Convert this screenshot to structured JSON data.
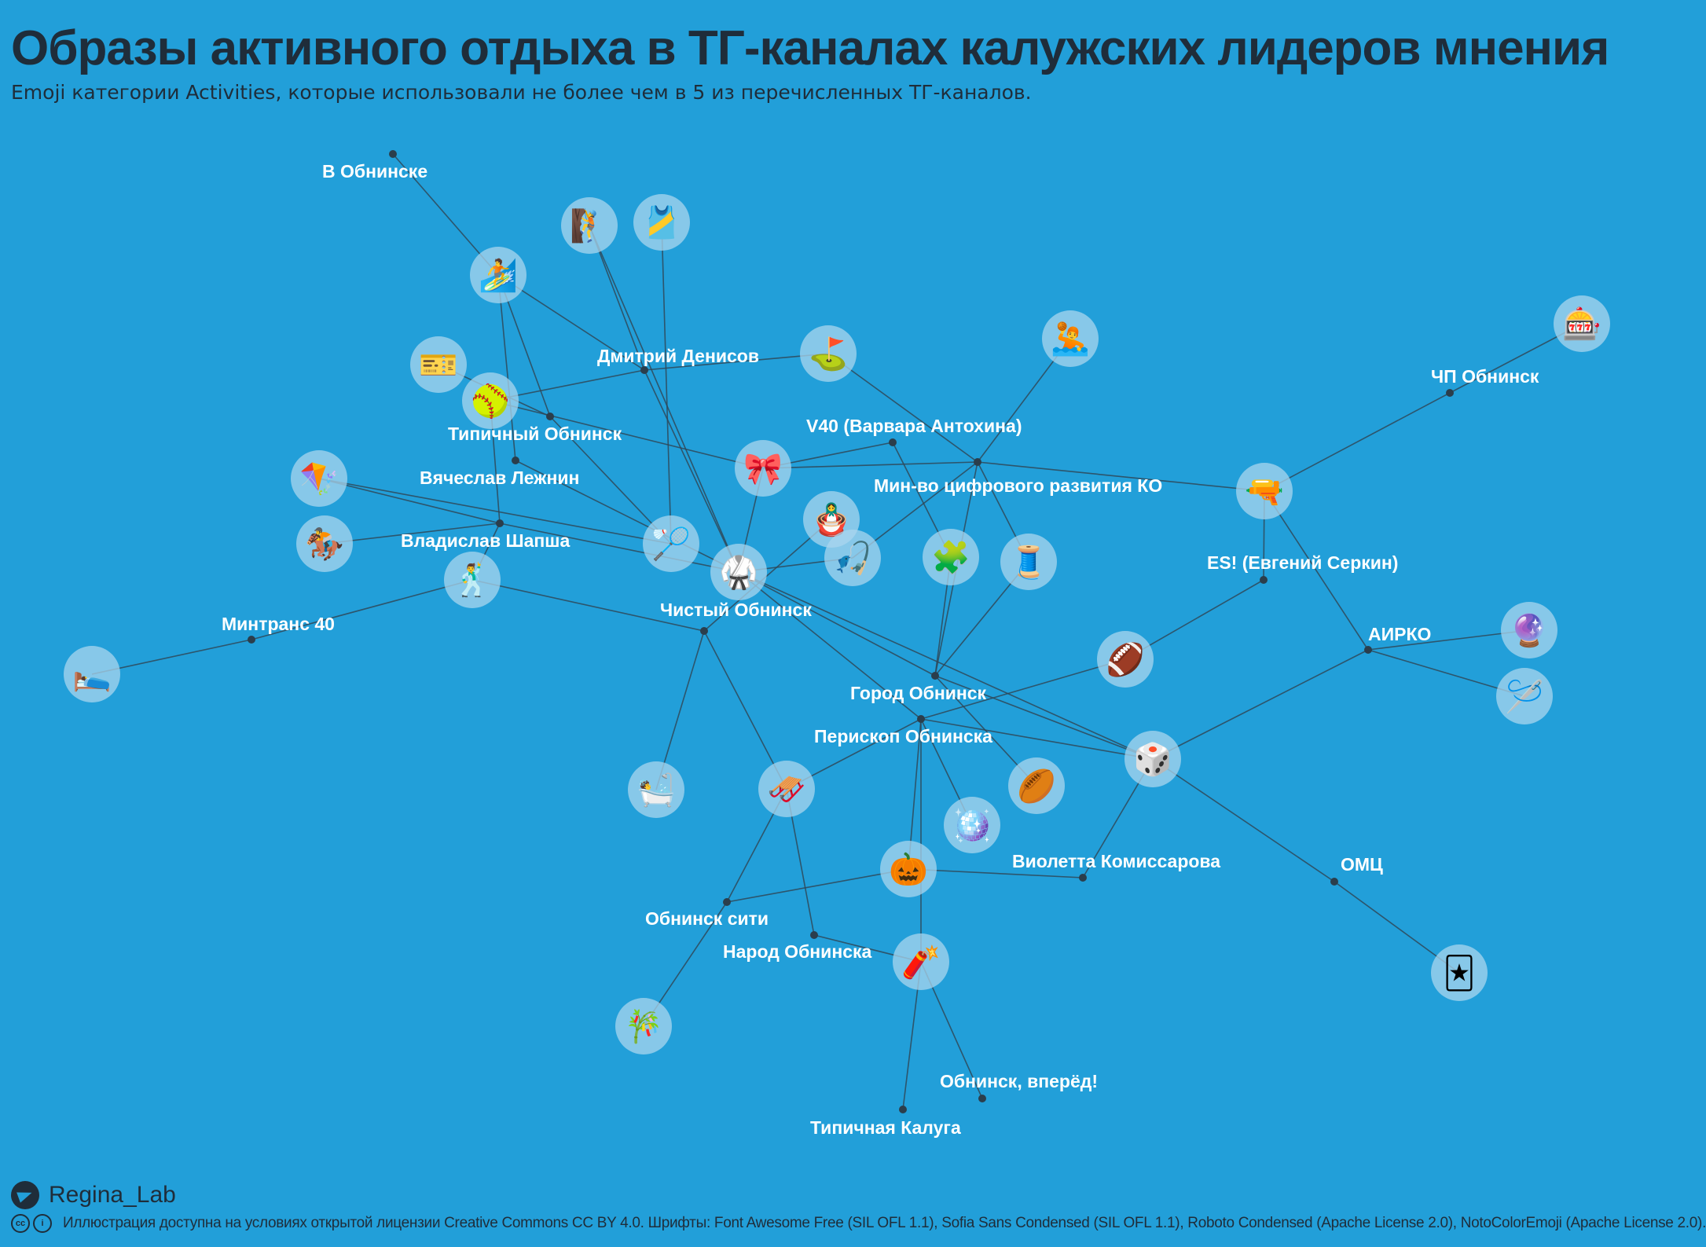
{
  "title": "Образы активного отдыха в ТГ-каналах калужских лидеров мнения",
  "subtitle": "Emoji категории Activities, которые использовали не более чем в 5 из перечисленных ТГ-каналов.",
  "brand": {
    "icon": "telegram-icon",
    "name": "Regina_Lab"
  },
  "footer": {
    "license_icons": [
      "cc-icon",
      "by-icon"
    ],
    "text": "Иллюстрация доступна на условиях открытой лицензии Creative Commons CC BY 4.0.  Шрифты: Font Awesome Free (SIL OFL 1.1), Sofia Sans Condensed (SIL OFL 1.1), Roboto Condensed (Apache License 2.0), NotoColorEmoji (Apache License 2.0)."
  },
  "colors": {
    "background": "#229fd9",
    "text": "#1f2d3a",
    "label": "#ffffff",
    "edge": "#2f4858",
    "emoji_circle": "#a9d6ee"
  },
  "channels": [
    {
      "id": "obninske",
      "label": "В Обнинске"
    },
    {
      "id": "denisov",
      "label": "Дмитрий Денисов"
    },
    {
      "id": "tipichny_obninsk",
      "label": "Типичный Обнинск"
    },
    {
      "id": "lezhnin",
      "label": "Вячеслав Лежнин"
    },
    {
      "id": "shapsha",
      "label": "Владислав Шапша"
    },
    {
      "id": "mintrans",
      "label": "Минтранс 40"
    },
    {
      "id": "v40",
      "label": "V40 (Варвара Антохина)"
    },
    {
      "id": "mincifra",
      "label": "Мин-во цифрового развития КО"
    },
    {
      "id": "chisty",
      "label": "Чистый Обнинск"
    },
    {
      "id": "gorod",
      "label": "Город Обнинск"
    },
    {
      "id": "periskop",
      "label": "Перископ Обнинска"
    },
    {
      "id": "obninsk_city",
      "label": "Обнинск сити"
    },
    {
      "id": "narod",
      "label": "Народ Обнинска"
    },
    {
      "id": "tipichnaya_kaluga",
      "label": "Типичная Калуга"
    },
    {
      "id": "vperyod",
      "label": "Обнинск, вперёд!"
    },
    {
      "id": "komissarova",
      "label": "Виолетта Комиссарова"
    },
    {
      "id": "omc",
      "label": "ОМЦ"
    },
    {
      "id": "airko",
      "label": "АИРКО"
    },
    {
      "id": "es",
      "label": "ES! (Евгений Серкин)"
    },
    {
      "id": "chp",
      "label": "ЧП Обнинск"
    }
  ],
  "emojis": [
    {
      "id": "climbing",
      "char": "🧗"
    },
    {
      "id": "tanktop",
      "char": "🎽"
    },
    {
      "id": "surfer",
      "char": "🏄"
    },
    {
      "id": "ticket",
      "char": "🎫"
    },
    {
      "id": "softball",
      "char": "🥎"
    },
    {
      "id": "golf",
      "char": "⛳"
    },
    {
      "id": "waterpolo",
      "char": "🤽"
    },
    {
      "id": "slot",
      "char": "🎰"
    },
    {
      "id": "kite",
      "char": "🪁"
    },
    {
      "id": "horse",
      "char": "🏇"
    },
    {
      "id": "ribbon",
      "char": "🎀"
    },
    {
      "id": "nesting",
      "char": "🪆"
    },
    {
      "id": "badminton",
      "char": "🏸"
    },
    {
      "id": "fishing",
      "char": "🎣"
    },
    {
      "id": "puzzle",
      "char": "🧩"
    },
    {
      "id": "thread",
      "char": "🧵"
    },
    {
      "id": "watergun",
      "char": "🔫"
    },
    {
      "id": "martial",
      "char": "🥋"
    },
    {
      "id": "dancer",
      "char": "🕺"
    },
    {
      "id": "bed",
      "char": "🛌"
    },
    {
      "id": "football",
      "char": "🏈"
    },
    {
      "id": "crystal",
      "char": "🔮"
    },
    {
      "id": "yarn",
      "char": "🪡"
    },
    {
      "id": "die",
      "char": "🎲"
    },
    {
      "id": "bath",
      "char": "🛀"
    },
    {
      "id": "sled",
      "char": "🛷"
    },
    {
      "id": "rugby",
      "char": "🏉"
    },
    {
      "id": "mirrorball",
      "char": "🪩"
    },
    {
      "id": "pumpkin",
      "char": "🎃"
    },
    {
      "id": "joker",
      "char": "🃏"
    },
    {
      "id": "firecracker",
      "char": "🧨"
    },
    {
      "id": "tanabata",
      "char": "🎋"
    }
  ],
  "edges": [
    [
      "obninske",
      "surfer"
    ],
    [
      "surfer",
      "denisov"
    ],
    [
      "surfer",
      "tipichny_obninsk"
    ],
    [
      "climbing",
      "denisov"
    ],
    [
      "climbing",
      "martial"
    ],
    [
      "tanktop",
      "badminton"
    ],
    [
      "denisov",
      "golf"
    ],
    [
      "denisov",
      "softball"
    ],
    [
      "denisov",
      "martial"
    ],
    [
      "golf",
      "mincifra"
    ],
    [
      "ticket",
      "tipichny_obninsk"
    ],
    [
      "softball",
      "ribbon"
    ],
    [
      "tipichny_obninsk",
      "badminton"
    ],
    [
      "lezhnin",
      "surfer"
    ],
    [
      "lezhnin",
      "martial"
    ],
    [
      "kite",
      "shapsha"
    ],
    [
      "kite",
      "badminton"
    ],
    [
      "horse",
      "shapsha"
    ],
    [
      "shapsha",
      "softball"
    ],
    [
      "shapsha",
      "dancer"
    ],
    [
      "shapsha",
      "martial"
    ],
    [
      "dancer",
      "mintrans"
    ],
    [
      "dancer",
      "chisty"
    ],
    [
      "mintrans",
      "bed"
    ],
    [
      "v40",
      "puzzle"
    ],
    [
      "v40",
      "ribbon"
    ],
    [
      "ribbon",
      "mincifra"
    ],
    [
      "ribbon",
      "martial"
    ],
    [
      "mincifra",
      "waterpolo"
    ],
    [
      "mincifra",
      "watergun"
    ],
    [
      "mincifra",
      "thread"
    ],
    [
      "mincifra",
      "fishing"
    ],
    [
      "mincifra",
      "gorod"
    ],
    [
      "nesting",
      "chisty"
    ],
    [
      "fishing",
      "martial"
    ],
    [
      "chisty",
      "bath"
    ],
    [
      "chisty",
      "sled"
    ],
    [
      "martial",
      "gorod"
    ],
    [
      "martial",
      "periskop"
    ],
    [
      "martial",
      "die"
    ],
    [
      "puzzle",
      "gorod"
    ],
    [
      "thread",
      "gorod"
    ],
    [
      "gorod",
      "die"
    ],
    [
      "gorod",
      "rugby"
    ],
    [
      "periskop",
      "football"
    ],
    [
      "periskop",
      "sled"
    ],
    [
      "periskop",
      "die"
    ],
    [
      "periskop",
      "mirrorball"
    ],
    [
      "periskop",
      "pumpkin"
    ],
    [
      "periskop",
      "firecracker"
    ],
    [
      "football",
      "es"
    ],
    [
      "es",
      "watergun"
    ],
    [
      "watergun",
      "chp"
    ],
    [
      "chp",
      "slot"
    ],
    [
      "watergun",
      "airko"
    ],
    [
      "airko",
      "crystal"
    ],
    [
      "airko",
      "yarn"
    ],
    [
      "airko",
      "die"
    ],
    [
      "die",
      "komissarova"
    ],
    [
      "die",
      "omc"
    ],
    [
      "omc",
      "joker"
    ],
    [
      "pumpkin",
      "komissarova"
    ],
    [
      "pumpkin",
      "obninsk_city"
    ],
    [
      "sled",
      "obninsk_city"
    ],
    [
      "sled",
      "narod"
    ],
    [
      "narod",
      "firecracker"
    ],
    [
      "obninsk_city",
      "tanabata"
    ],
    [
      "firecracker",
      "tipichnaya_kaluga"
    ],
    [
      "firecracker",
      "vperyod"
    ]
  ]
}
